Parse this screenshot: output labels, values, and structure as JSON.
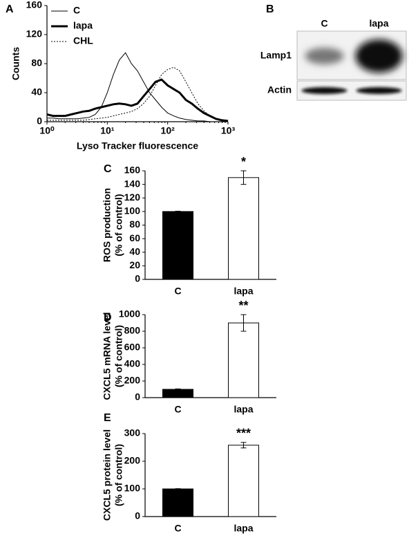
{
  "chart_data": [
    {
      "type": "line",
      "panel": "A",
      "xlabel": "Lyso Tracker fluorescence",
      "ylabel": "Counts",
      "log_x": true,
      "legend": "upper left",
      "x": [
        1,
        1.26,
        1.58,
        2,
        2.51,
        3.16,
        3.98,
        5.01,
        6.31,
        7.94,
        10,
        12.6,
        15.8,
        20,
        25.1,
        31.6,
        39.8,
        50.1,
        63.1,
        79.4,
        100,
        126,
        158,
        200,
        251,
        316,
        398,
        501,
        631,
        794,
        1000
      ],
      "series": [
        {
          "name": "C",
          "color": "#000000",
          "line_width": 1,
          "line_style": "solid",
          "values": [
            5,
            5,
            4,
            4,
            4,
            4,
            5,
            6,
            10,
            20,
            40,
            65,
            85,
            95,
            80,
            70,
            55,
            40,
            30,
            20,
            12,
            8,
            5,
            3,
            2,
            1,
            1,
            0,
            0,
            0,
            0
          ]
        },
        {
          "name": "lapa",
          "color": "#000000",
          "line_width": 3,
          "line_style": "solid",
          "values": [
            10,
            8,
            8,
            8,
            10,
            12,
            14,
            15,
            18,
            20,
            22,
            24,
            25,
            24,
            22,
            25,
            35,
            45,
            55,
            58,
            50,
            45,
            40,
            30,
            25,
            18,
            12,
            8,
            4,
            2,
            1
          ]
        },
        {
          "name": "CHL",
          "color": "#000000",
          "line_width": 1,
          "line_style": "dotted",
          "values": [
            2,
            2,
            2,
            2,
            2,
            2,
            2,
            3,
            4,
            5,
            6,
            8,
            10,
            12,
            14,
            18,
            25,
            35,
            50,
            65,
            72,
            75,
            70,
            55,
            40,
            25,
            15,
            8,
            4,
            2,
            1
          ]
        }
      ],
      "xlim": [
        1,
        1000
      ],
      "xticks": [
        {
          "value": 1,
          "label": "10⁰"
        },
        {
          "value": 10,
          "label": "10¹"
        },
        {
          "value": 100,
          "label": "10²"
        },
        {
          "value": 1000,
          "label": "10³"
        }
      ],
      "ylim": [
        0,
        160
      ],
      "yticks": [
        0,
        40,
        80,
        120,
        160
      ]
    },
    {
      "type": "blot",
      "panel": "B",
      "lanes": [
        "C",
        "lapa"
      ],
      "rows": [
        "Lamp1",
        "Actin"
      ]
    },
    {
      "type": "bar",
      "panel": "C",
      "ylabel": [
        "ROS production",
        "(% of control)"
      ],
      "categories": [
        "C",
        "lapa"
      ],
      "values": [
        100,
        150
      ],
      "errors": [
        0.5,
        10
      ],
      "colors": [
        "#000000",
        "#ffffff"
      ],
      "annotations": [
        null,
        "*"
      ],
      "ylim": [
        0,
        160
      ],
      "yticks": [
        0,
        20,
        40,
        60,
        80,
        100,
        120,
        140,
        160
      ]
    },
    {
      "type": "bar",
      "panel": "D",
      "ylabel": [
        "CXCL5 mRNA level",
        "(% of control)"
      ],
      "categories": [
        "C",
        "lapa"
      ],
      "values": [
        100,
        900
      ],
      "errors": [
        5,
        100
      ],
      "colors": [
        "#000000",
        "#ffffff"
      ],
      "annotations": [
        null,
        "**"
      ],
      "ylim": [
        0,
        1000
      ],
      "yticks": [
        0,
        200,
        400,
        600,
        800,
        1000
      ]
    },
    {
      "type": "bar",
      "panel": "E",
      "ylabel": [
        "CXCL5 protein level",
        "(% of control)"
      ],
      "categories": [
        "C",
        "lapa"
      ],
      "values": [
        100,
        258
      ],
      "errors": [
        1,
        10
      ],
      "colors": [
        "#000000",
        "#ffffff"
      ],
      "annotations": [
        null,
        "***"
      ],
      "ylim": [
        0,
        300
      ],
      "yticks": [
        0,
        100,
        200,
        300
      ]
    }
  ]
}
